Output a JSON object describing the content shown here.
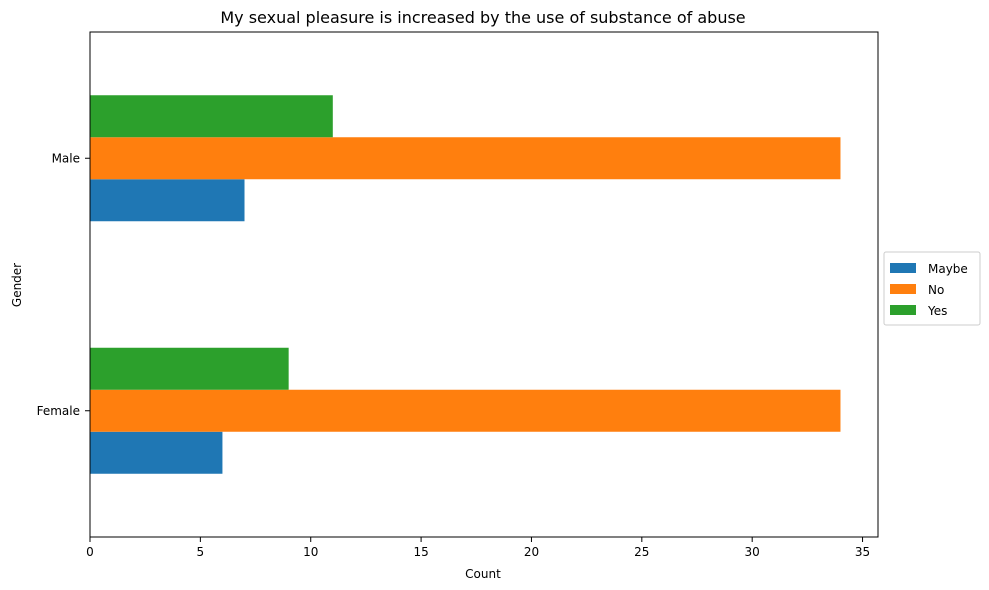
{
  "chart_data": {
    "type": "bar",
    "orientation": "horizontal",
    "title": "My sexual pleasure is increased by the use of substance of abuse",
    "xlabel": "Count",
    "ylabel": "Gender",
    "categories": [
      "Female",
      "Male"
    ],
    "series": [
      {
        "name": "Maybe",
        "color": "#1f77b4",
        "values": [
          6,
          7
        ]
      },
      {
        "name": "No",
        "color": "#ff7f0e",
        "values": [
          34,
          34
        ]
      },
      {
        "name": "Yes",
        "color": "#2ca02c",
        "values": [
          9,
          11
        ]
      }
    ],
    "xlim": [
      0,
      35.7
    ],
    "xticks": [
      0,
      5,
      10,
      15,
      20,
      25,
      30,
      35
    ],
    "grid": false,
    "legend_position": "right"
  }
}
